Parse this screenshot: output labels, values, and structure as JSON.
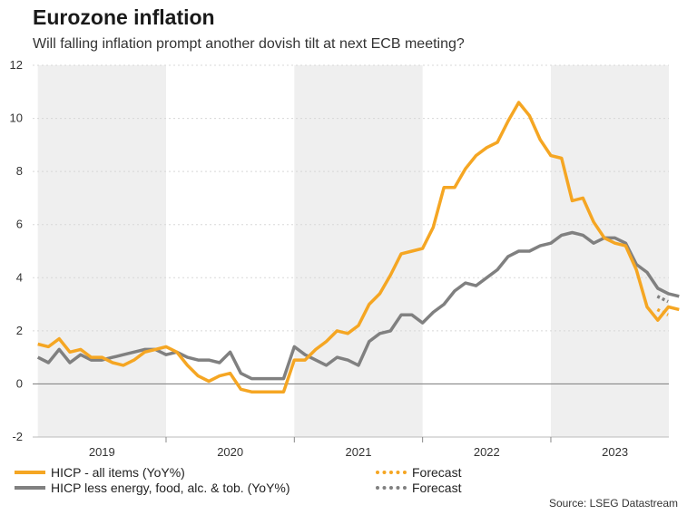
{
  "title": "Eurozone inflation",
  "subtitle": "Will falling inflation prompt another dovish tilt at next ECB meeting?",
  "source": "Source: LSEG Datastream",
  "colors": {
    "hicp": "#f5a623",
    "core": "#808080",
    "shade": "#efefef",
    "grid": "#d8d8d8"
  },
  "chart_data": {
    "type": "line",
    "ylim": [
      -2,
      12
    ],
    "yticks": [
      -2,
      0,
      2,
      4,
      6,
      8,
      10,
      12
    ],
    "xlim": [
      2018.96,
      2023.92
    ],
    "year_labels": [
      "2019",
      "2020",
      "2021",
      "2022",
      "2023"
    ],
    "shaded_years": [
      2019,
      2021,
      2023
    ],
    "series": [
      {
        "name": "HICP - all items (YoY%)",
        "x_start": 2019.0,
        "step": 0.0833333,
        "values": [
          1.5,
          1.4,
          1.7,
          1.2,
          1.3,
          1.0,
          1.0,
          0.8,
          0.7,
          0.9,
          1.2,
          1.3,
          1.4,
          1.2,
          0.7,
          0.3,
          0.1,
          0.3,
          0.4,
          -0.2,
          -0.3,
          -0.3,
          -0.3,
          -0.3,
          0.9,
          0.9,
          1.3,
          1.6,
          2.0,
          1.9,
          2.2,
          3.0,
          3.4,
          4.1,
          4.9,
          5.0,
          5.1,
          5.9,
          7.4,
          7.4,
          8.1,
          8.6,
          8.9,
          9.1,
          9.9,
          10.6,
          10.1,
          9.2,
          8.6,
          8.5,
          6.9,
          7.0,
          6.1,
          5.5,
          5.3,
          5.2,
          4.3,
          2.9,
          2.4,
          2.9,
          2.8
        ]
      },
      {
        "name": "HICP less energy, food, alc. & tob. (YoY%)",
        "x_start": 2019.0,
        "step": 0.0833333,
        "values": [
          1.0,
          0.8,
          1.3,
          0.8,
          1.1,
          0.9,
          0.9,
          1.0,
          1.1,
          1.2,
          1.3,
          1.3,
          1.1,
          1.2,
          1.0,
          0.9,
          0.9,
          0.8,
          1.2,
          0.4,
          0.2,
          0.2,
          0.2,
          0.2,
          1.4,
          1.1,
          0.9,
          0.7,
          1.0,
          0.9,
          0.7,
          1.6,
          1.9,
          2.0,
          2.6,
          2.6,
          2.3,
          2.7,
          3.0,
          3.5,
          3.8,
          3.7,
          4.0,
          4.3,
          4.8,
          5.0,
          5.0,
          5.2,
          5.3,
          5.6,
          5.7,
          5.6,
          5.3,
          5.5,
          5.5,
          5.3,
          4.5,
          4.2,
          3.6,
          3.4,
          3.3
        ]
      },
      {
        "name": "Forecast",
        "x_start": 2023.83,
        "step": 0.0833333,
        "values": [
          2.8,
          2.6
        ]
      },
      {
        "name": "Forecast",
        "x_start": 2023.83,
        "step": 0.0833333,
        "values": [
          3.3,
          3.1
        ]
      }
    ]
  },
  "legend": {
    "hicp": "HICP - all items (YoY%)",
    "core": "HICP less energy, food, alc. & tob. (YoY%)",
    "forecast1": "Forecast",
    "forecast2": "Forecast"
  }
}
